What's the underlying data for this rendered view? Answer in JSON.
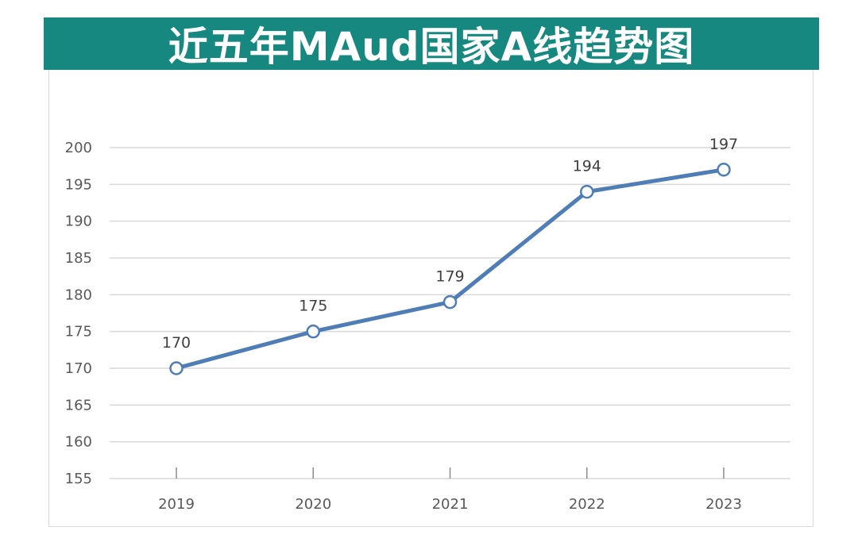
{
  "title": "近五年MAud国家A线趋势图",
  "colors": {
    "banner": "#16887f",
    "line": "#4f7db5",
    "grid": "#d9d9d9",
    "marker_fill": "#ffffff"
  },
  "chart_data": {
    "type": "line",
    "title": "近五年MAud国家A线趋势图",
    "categories": [
      "2019",
      "2020",
      "2021",
      "2022",
      "2023"
    ],
    "series": [
      {
        "values": [
          170,
          175,
          179,
          194,
          197
        ],
        "labels": [
          "170",
          "175",
          "179",
          "194",
          "197"
        ]
      }
    ],
    "ylim": [
      155,
      200
    ],
    "yticks": [
      "155",
      "160",
      "165",
      "170",
      "175",
      "180",
      "185",
      "190",
      "195",
      "200"
    ],
    "grid": true,
    "legend": "none",
    "xlabel": "",
    "ylabel": ""
  }
}
